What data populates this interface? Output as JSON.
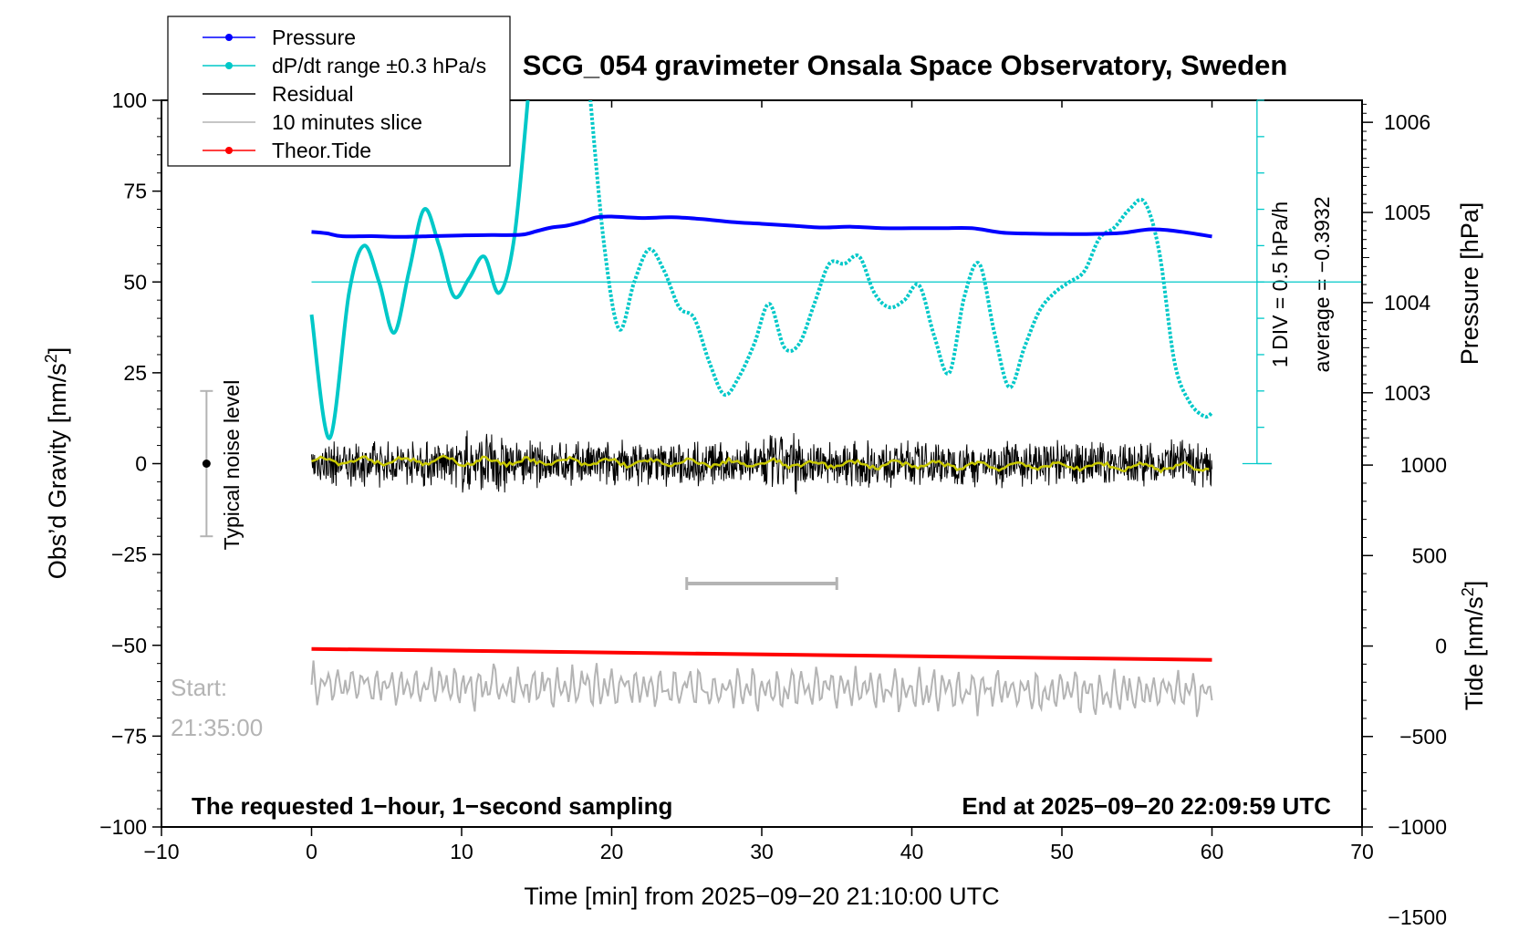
{
  "chart_data": {
    "type": "line",
    "title": "SCG_054 gravimeter Onsala Space Observatory, Sweden",
    "xlabel": "Time [min] from 2025−09−20 21:10:00 UTC",
    "ylabel_left_main": "Obs’d Gravity [nm/s",
    "ylabel_left_sup": "2",
    "ylabel_left_end": "]",
    "ylabel_right_top": "Pressure [hPa]",
    "ylabel_right_bottom_main": "Tide [nm/s",
    "ylabel_right_bottom_sup": "2",
    "ylabel_right_bottom_end": "]",
    "xlim": [
      -10,
      70
    ],
    "ylim": [
      -100,
      100
    ],
    "x_ticks": [
      -10,
      0,
      10,
      20,
      30,
      40,
      50,
      60,
      70
    ],
    "x_tick_labels": [
      "−10",
      "0",
      "10",
      "20",
      "30",
      "40",
      "50",
      "60",
      "70"
    ],
    "y_ticks": [
      -100,
      -75,
      -50,
      -25,
      0,
      25,
      50,
      75,
      100
    ],
    "y_tick_labels": [
      "−100",
      "−75",
      "−50",
      "−25",
      "0",
      "25",
      "50",
      "75",
      "100"
    ],
    "pressure_axis": {
      "ticks": [
        1003,
        1004,
        1005,
        1006
      ],
      "tick_labels": [
        "1003",
        "1004",
        "1005",
        "1006"
      ],
      "scale_hpa_per_gravity_unit": 0.0403,
      "gravity_at_1003": 19.5
    },
    "tide_axis": {
      "ticks": [
        1000,
        500,
        0,
        -500,
        -1000,
        -1500
      ],
      "tick_labels": [
        "1000",
        "500",
        "0",
        "−500",
        "−1000",
        "−1500"
      ],
      "gravity_per_tide_unit": 0.0498,
      "gravity_at_0": -50.2
    },
    "dpdt_scale": {
      "label_div": "1 DIV = 0.5 hPa/h",
      "label_avg": "average = −0.3932",
      "baseline_y": 50,
      "axis_top_y": 100,
      "axis_bottom_y": 0,
      "minor_ticks_every": 10
    },
    "legend": [
      {
        "label": "Pressure",
        "color": "#0000ff",
        "marker": true
      },
      {
        "label": "dP/dt range ±0.3 hPa/s",
        "color": "#00c8c8",
        "marker": true
      },
      {
        "label": "Residual",
        "color": "#000000",
        "marker": false
      },
      {
        "label": "10 minutes slice",
        "color": "#b4b4b4",
        "marker": false
      },
      {
        "label": "Theor.Tide",
        "color": "#ff0000",
        "marker": true
      }
    ],
    "series": [
      {
        "name": "Pressure",
        "color": "#0000ff",
        "unit": "gravity-axis units",
        "x": [
          0,
          1,
          2,
          4,
          6,
          8,
          10,
          12,
          14,
          15,
          16,
          17,
          18,
          19,
          20,
          22,
          24,
          26,
          28,
          30,
          32,
          34,
          36,
          38,
          40,
          42,
          44,
          46,
          48,
          50,
          52,
          54,
          56,
          58,
          60
        ],
        "y": [
          63.8,
          63.4,
          62.6,
          62.6,
          62.4,
          62.6,
          62.8,
          62.9,
          63.0,
          64.0,
          65.0,
          65.5,
          66.5,
          67.8,
          68.0,
          67.6,
          67.8,
          67.3,
          66.5,
          66.0,
          65.5,
          65.0,
          65.2,
          64.8,
          64.8,
          64.8,
          64.8,
          63.6,
          63.3,
          63.2,
          63.2,
          63.5,
          64.5,
          63.8,
          62.5
        ]
      },
      {
        "name": "dP/dt range ±0.3 hPa/s",
        "color": "#00c8c8",
        "unit": "gravity-axis units",
        "x": [
          0,
          1.2,
          2.5,
          3.5,
          4.5,
          5.5,
          6.5,
          7.5,
          8.5,
          9.5,
          10.5,
          11.5,
          12.5,
          13.5,
          14.5,
          18.5,
          19.5,
          20.5,
          21.5,
          22.5,
          23.5,
          24.5,
          25.5,
          26.5,
          27.5,
          28.5,
          29.5,
          30.5,
          31.5,
          32.5,
          33.5,
          34.5,
          35.5,
          36.5,
          37.5,
          38.5,
          39.5,
          40.5,
          41.5,
          42.5,
          43.5,
          44.5,
          45.5,
          46.5,
          47.5,
          48.5,
          49.5,
          50.5,
          51.5,
          52.5,
          53.5,
          54.5,
          55.5,
          56.5,
          57.5,
          58.5,
          59.5,
          60
        ],
        "y": [
          41,
          7,
          47,
          60,
          50,
          36,
          53,
          70,
          60,
          46,
          51,
          57,
          47,
          62,
          100,
          100,
          60,
          37,
          50,
          59,
          53,
          43,
          40,
          28,
          19,
          24,
          33,
          44,
          32,
          33,
          44,
          55,
          55,
          57,
          47,
          43,
          45,
          49,
          35,
          25,
          46,
          55,
          36,
          21,
          32,
          42,
          47,
          50,
          53,
          62,
          65,
          70,
          72,
          58,
          28,
          17,
          13,
          14
        ]
      },
      {
        "name": "Residual",
        "color": "#000000",
        "unit": "gravity-axis units",
        "x": [
          0,
          60
        ],
        "y": [
          0,
          0
        ],
        "noise_envelope": 6
      },
      {
        "name": "Residual smoothed",
        "color": "#c8c800",
        "unit": "gravity-axis units",
        "x": [
          0,
          60
        ],
        "y": [
          1,
          -1
        ]
      },
      {
        "name": "10 minutes slice",
        "color": "#b4b4b4",
        "unit": "gravity-axis units",
        "x": [
          0,
          60
        ],
        "y": [
          -61,
          -63
        ],
        "oscillation_amplitude": 5
      },
      {
        "name": "Theor.Tide",
        "color": "#ff0000",
        "unit": "gravity-axis units",
        "x": [
          0,
          60
        ],
        "y": [
          -51.0,
          -54.0
        ]
      }
    ],
    "noise_level_bar": {
      "label": "Typical noise level",
      "x": -7,
      "center": 0,
      "low": -20,
      "high": 20
    },
    "slice_bracket": {
      "x_start": 25,
      "x_end": 35,
      "y": -33
    },
    "annotations": {
      "start_label": "Start:",
      "start_time": "21:35:00",
      "bottom_left": "The requested 1−hour, 1−second sampling",
      "bottom_right": "End at 2025−09−20 22:09:59 UTC"
    }
  }
}
